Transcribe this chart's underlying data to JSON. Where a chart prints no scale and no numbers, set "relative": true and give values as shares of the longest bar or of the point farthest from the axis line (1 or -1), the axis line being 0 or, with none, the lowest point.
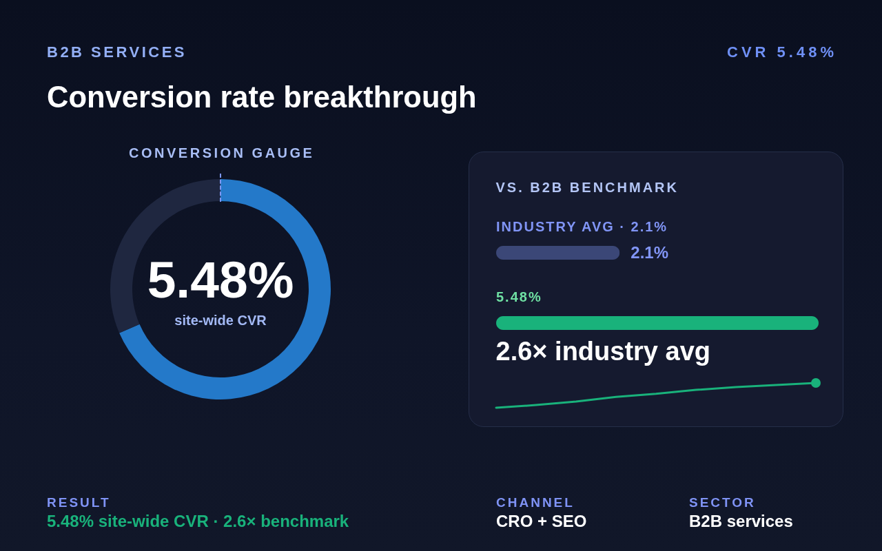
{
  "chart_data": [
    {
      "type": "other",
      "title": "Conversion rate breakthrough",
      "annotations": [
        "B2B SERVICES",
        "CVR 5.48%"
      ]
    },
    {
      "type": "donut",
      "title": "CONVERSION GAUGE",
      "categories": [
        null,
        null
      ],
      "values": [
        68.5,
        31.5
      ],
      "colors": [
        "#2479c9",
        "#1f2740"
      ],
      "annotations": [
        "5.48%",
        "site-wide CVR"
      ]
    },
    {
      "type": "bar",
      "orientation": "horizontal",
      "title": "VS. B2B BENCHMARK",
      "categories": [
        "INDUSTRY AVG · 2.1%",
        "5.48%"
      ],
      "values": [
        2.1,
        5.48
      ],
      "colors": [
        "#3b4777",
        "#19b27b"
      ],
      "value_labels": [
        "2.1%",
        null
      ],
      "annotations": [
        "2.6× industry avg"
      ]
    },
    {
      "type": "line",
      "relative": true,
      "categories": [
        null,
        null,
        null,
        null,
        null,
        null,
        null,
        null,
        null
      ],
      "series": [
        {
          "color": "#19b27b",
          "values": [
            0,
            0.11,
            0.25,
            0.44,
            0.56,
            0.72,
            0.83,
            0.92,
            1
          ]
        }
      ]
    },
    {
      "type": "other",
      "annotations": [
        "RESULT",
        "5.48% site-wide CVR · 2.6× benchmark",
        "CHANNEL",
        "CRO + SEO",
        "SECTOR",
        "B2B services"
      ]
    }
  ]
}
